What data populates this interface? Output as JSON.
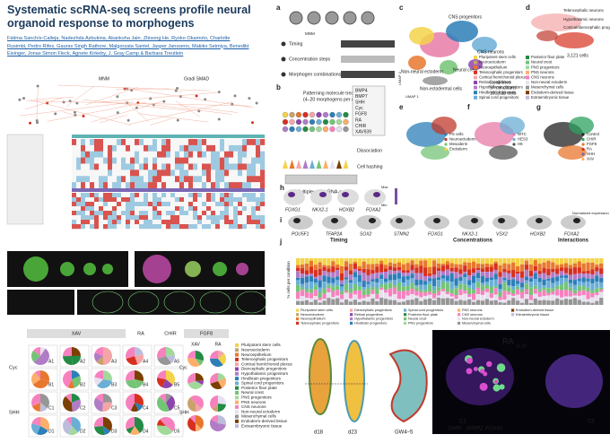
{
  "header": {
    "title": "Systematic scRNA-seq screens profile neural organoid response to morphogens",
    "authors": [
      "Fátima Sanchís-Calleja, Nadezhda Azbukina, Akanksha Jain, Zhisong He, Ryoko Okamoto, Charlotte",
      "Rusimbi, Pedro Rifes, Gaurav Singh Rathore, Malgorzata Santel, Jasper Janssens, Makiko Seimiya, Benedikt",
      "Eisinger, Jonas Simon Fleck, Agnete Kirkeby, J. Gray Camp & Barbara Treutlein"
    ]
  },
  "panel_labels": [
    "a",
    "b",
    "c",
    "d",
    "e",
    "f",
    "g",
    "h",
    "i",
    "j"
  ],
  "overview": {
    "labels": [
      "MNM",
      "Gradi SMAD"
    ]
  },
  "panel_a": {
    "header": "MNM",
    "rows": [
      "Timing",
      "Concentration steps",
      "Morphogen combinations"
    ]
  },
  "panel_b": {
    "title": "Patterning molecule treatment",
    "subtitle": "(4–20 morphogens per condition)",
    "morphogens": [
      "BMP4",
      "BMP7",
      "SHH",
      "Cyc",
      "FGF8",
      "RA",
      "CHIR",
      "XAV939"
    ],
    "steps": [
      "Dissociation",
      "Cell hashing"
    ],
    "readout": "Multiplexed scRNA-seq"
  },
  "panel_c": {
    "regions": [
      "CNS progenitors",
      "CNS neurons",
      "Neural crest",
      "Non-neural ectoderm",
      "Non-ectodermal cells"
    ],
    "summary": [
      "3 cell lines",
      "97 conditions",
      "100,538 cells"
    ],
    "axis_x": "UMAP 1",
    "axis_y": "UMAP 2",
    "legend": [
      "Pluripotent stem cells",
      "Neuroectoderm",
      "Neuroepithelium",
      "Telencephalic progenitors",
      "Cortical hem/choroid plexus",
      "Retinal progenitors",
      "Hypothalamic progenitors",
      "Hindbrain progenitors",
      "Spinal cord progenitors",
      "Posterior floor plate",
      "Neural crest",
      "PNS progenitors",
      "PNS neurons",
      "CNS neurons",
      "Non-neural ectoderm",
      "Mesenchymal cells",
      "Endoderm-derived tissue",
      "Extraembryonic tissue"
    ]
  },
  "panel_d": {
    "labels": [
      "Telencephalic neurons",
      "Hypothalamic neurons",
      "Cortical/diencephalic progenitors"
    ],
    "count": "3,121 cells"
  },
  "panel_e": {
    "legend": [
      "PS cells",
      "Neuroectoderm",
      "Mesoderm",
      "Endoderm"
    ]
  },
  "panel_f": {
    "legend": [
      "WTC",
      "HES3",
      "H9"
    ]
  },
  "panel_g": {
    "legend": [
      "Control",
      "CHIR",
      "FGF8",
      "RA",
      "SHH",
      "XAV"
    ]
  },
  "panel_h": {
    "genes": [
      "FOXG1",
      "NKX2-1",
      "HOXB2",
      "FOXA2"
    ],
    "scale": [
      "Max",
      "Min"
    ]
  },
  "panel_i": {
    "genes": [
      "POU5F1",
      "TFAP2A",
      "SOX2",
      "STMN2",
      "FOXG1",
      "NKX2-1",
      "VSX2",
      "HOXB2",
      "FOXA2"
    ],
    "scale": "Normalized expression"
  },
  "panel_j": {
    "groups": [
      "Timing",
      "Concentrations",
      "Interactions"
    ],
    "y_label": "% cells per condition",
    "legend": [
      "Pluripotent stem cells",
      "Neuroectoderm",
      "Neuroepithelium",
      "Telencephalic progenitors",
      "Diencephalic progenitors",
      "Retinal progenitors",
      "Hypothalamic progenitors",
      "Hindbrain progenitors",
      "Spinal cord progenitors",
      "Posterior floor plate",
      "Neural crest",
      "PNS progenitors",
      "PNS neurons",
      "CNS neurons",
      "Non-neural ectoderm",
      "Mesenchymal cells",
      "Endoderm-derived tissue",
      "Extraembryonic tissue"
    ]
  },
  "pie_grid": {
    "columns": [
      "XAV",
      "RA",
      "CHIR"
    ],
    "rows": [
      "Cyc",
      "SHH"
    ],
    "wells": [
      [
        "A1",
        "A2",
        "A3",
        "A4",
        "A5"
      ],
      [
        "B1",
        "B2",
        "B3",
        "B4",
        "B5"
      ],
      [
        "C1",
        "C2",
        "C3",
        "C4",
        "C5"
      ],
      [
        "D1",
        "D2",
        "D3",
        "D4",
        "D5"
      ]
    ]
  },
  "fgf8_grid": {
    "title": "FGF8",
    "columns": [
      "XAV",
      "RA"
    ],
    "rows": [
      "Cyc",
      "SHH"
    ]
  },
  "pie_legend": [
    "Pluripotent stem cells",
    "Neuroectoderm",
    "Neuroepithelium",
    "Telencephalic progenitors",
    "Cortical hem/choroid plexus",
    "Diencephalic progenitors",
    "Hypothalamic progenitors",
    "Hindbrain progenitors",
    "Spinal cord progenitors",
    "Posterior floor plate",
    "Neural crest",
    "PNS progenitors",
    "PNS neurons",
    "CNS neurons",
    "Non-neural ectoderm",
    "Mesenchymal cells",
    "Endoderm-derived tissue",
    "Extraembryonic tissue"
  ],
  "embryo": {
    "stages": [
      "d18",
      "d23",
      "GW4–5"
    ]
  },
  "image": {
    "condition": "RA",
    "window": "9–20",
    "wells": [
      "C1",
      "C5"
    ],
    "stains": [
      "DAPI",
      "SFRP2",
      "FOXA2"
    ]
  }
}
